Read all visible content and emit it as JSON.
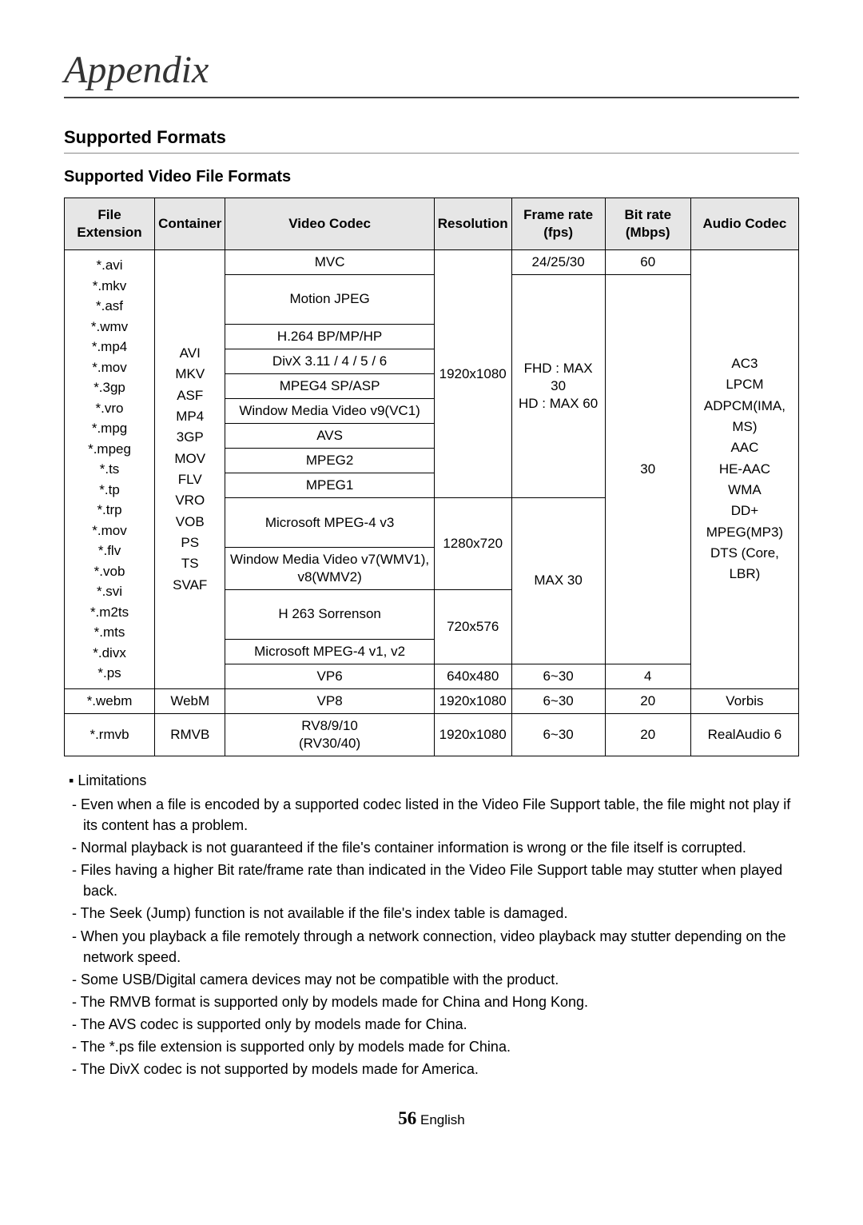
{
  "page_title": "Appendix",
  "section_heading": "Supported Formats",
  "subsection_heading": "Supported Video File Formats",
  "table": {
    "headers": [
      "File Extension",
      "Container",
      "Video Codec",
      "Resolution",
      "Frame rate (fps)",
      "Bit rate (Mbps)",
      "Audio Codec"
    ],
    "file_extensions_block1": "*.avi\n*.mkv\n*.asf\n*.wmv\n*.mp4\n*.mov\n*.3gp\n*.vro\n*.mpg\n*.mpeg\n*.ts\n*.tp\n*.trp\n*.mov\n*.flv\n*.vob\n*.svi\n*.m2ts\n*.mts\n*.divx\n*.ps",
    "containers_block1": "AVI\nMKV\nASF\nMP4\n3GP\nMOV\nFLV\nVRO\nVOB\nPS\nTS\nSVAF",
    "video_codecs": {
      "mvc": "MVC",
      "motion_jpeg": "Motion JPEG",
      "h264": "H.264 BP/MP/HP",
      "divx": "DivX 3.11 / 4 / 5 / 6",
      "mpeg4": "MPEG4 SP/ASP",
      "wmv9": "Window Media Video v9(VC1)",
      "avs": "AVS",
      "mpeg2": "MPEG2",
      "mpeg1": "MPEG1",
      "ms_mpeg4v3": "Microsoft MPEG-4 v3",
      "wmv78": "Window Media Video v7(WMV1), v8(WMV2)",
      "h263": "H 263 Sorrenson",
      "ms_mpeg4v12": "Microsoft MPEG-4 v1, v2",
      "vp6": "VP6",
      "vp8": "VP8",
      "rv": "RV8/9/10 (RV30/40)"
    },
    "resolutions": {
      "r1920": "1920x1080",
      "r1280": "1280x720",
      "r720": "720x576",
      "r640": "640x480"
    },
    "frame_rates": {
      "mvc": "24/25/30",
      "fhd_hd": "FHD : MAX 30\nHD : MAX 60",
      "max30": "MAX 30",
      "r6_30": "6~30"
    },
    "bit_rates": {
      "b60": "60",
      "b30": "30",
      "b4": "4",
      "b20": "20"
    },
    "audio_codec_block1": "AC3\nLPCM\nADPCM(IMA, MS)\nAAC\nHE-AAC\nWMA\nDD+\nMPEG(MP3)\nDTS (Core, LBR)",
    "webm_row": {
      "ext": "*.webm",
      "container": "WebM",
      "codec": "VP8",
      "res": "1920x1080",
      "fps": "6~30",
      "bitrate": "20",
      "audio": "Vorbis"
    },
    "rmvb_row": {
      "ext": "*.rmvb",
      "container": "RMVB",
      "codec": "RV8/9/10\n(RV30/40)",
      "res": "1920x1080",
      "fps": "6~30",
      "bitrate": "20",
      "audio": "RealAudio 6"
    }
  },
  "limitations_label": "Limitations",
  "limitations": [
    "Even when a file is encoded by a supported codec listed in the Video File Support table, the file might not play if its content has a problem.",
    "Normal playback is not guaranteed if the file's container information is wrong or the file itself is corrupted.",
    "Files having a higher Bit rate/frame rate than indicated in the Video File Support table may stutter when played back.",
    "The Seek (Jump) function is not available if the file's index table is damaged.",
    "When you playback a file remotely through a network connection, video playback may stutter depending on the network speed.",
    "Some USB/Digital camera devices may not be compatible with the product.",
    "The RMVB format is supported only by models made for China and Hong Kong.",
    "The AVS codec is supported only by models made for China.",
    "The *.ps file extension is supported only by models made for China.",
    "The DivX codec is not supported by models made for America."
  ],
  "footer": {
    "page_number": "56",
    "lang": "English"
  },
  "colors": {
    "header_bg": "#e6e6e6",
    "border": "#000000",
    "rule": "#888888",
    "text": "#000000"
  }
}
